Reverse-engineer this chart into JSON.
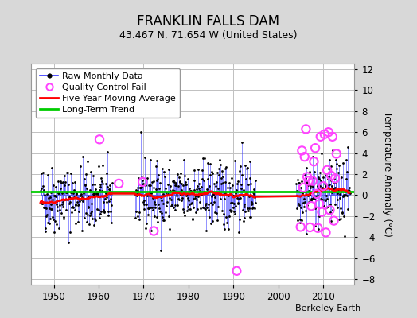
{
  "title": "FRANKLIN FALLS DAM",
  "subtitle": "43.467 N, 71.654 W (United States)",
  "ylabel": "Temperature Anomaly (°C)",
  "credit": "Berkeley Earth",
  "xlim": [
    1945,
    2017
  ],
  "ylim": [
    -8.5,
    12.5
  ],
  "yticks": [
    -8,
    -6,
    -4,
    -2,
    0,
    2,
    4,
    6,
    8,
    10,
    12
  ],
  "xticks": [
    1950,
    1960,
    1970,
    1980,
    1990,
    2000,
    2010
  ],
  "long_term_trend_value": 0.35,
  "bg_color": "#d8d8d8",
  "plot_bg_color": "#ffffff",
  "grid_color": "#c0c0c0",
  "raw_line_color": "#3333ff",
  "raw_dot_color": "#000000",
  "moving_avg_color": "#ff0000",
  "trend_color": "#00cc00",
  "qc_fail_color": "#ff44ff",
  "legend_fontsize": 8,
  "title_fontsize": 12,
  "subtitle_fontsize": 9,
  "credit_fontsize": 8,
  "seed": 42,
  "gap1_start": 1962,
  "gap1_end": 1968,
  "gap2_start": 1994,
  "gap2_end": 2004
}
